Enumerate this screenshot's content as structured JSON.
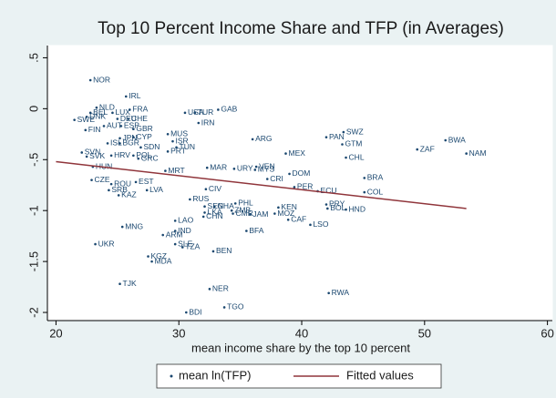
{
  "chart_data": {
    "type": "scatter",
    "title": "Top 10 Percent Income Share and TFP (in Averages)",
    "x_label": "mean income share by the top 10 percent",
    "xlim": [
      19.3,
      60.4
    ],
    "ylim": [
      -2.08,
      0.62
    ],
    "xticks": [
      20,
      30,
      40,
      50,
      60
    ],
    "yticks": [
      {
        "value": 0.5,
        "label": ".5"
      },
      0,
      {
        "value": -0.5,
        "label": "-.5"
      },
      -1,
      -1.5,
      -2
    ],
    "series": [
      {
        "name": "mean ln(TFP)",
        "color": "#1a476f",
        "labels": [
          "NOR",
          "IRL",
          "NLD",
          "BEL",
          "LUX",
          "FRA",
          "SWE",
          "DNK",
          "DEU",
          "CHE",
          "AUT",
          "ESP",
          "GBR",
          "FIN",
          "USA",
          "TUR",
          "GAB",
          "IRN",
          "JPN",
          "CYP",
          "MUS",
          "ISL",
          "BGR",
          "ISR",
          "TUN",
          "SDN",
          "PRT",
          "HRV",
          "POL",
          "GRC",
          "SVN",
          "SVK",
          "HUN",
          "ARG",
          "PAN",
          "SWZ",
          "GTM",
          "BWA",
          "ZAF",
          "NAM",
          "MEX",
          "CHL",
          "MRT",
          "MAR",
          "URY",
          "VEN",
          "MYS",
          "DOM",
          "CRI",
          "BRA",
          "PER",
          "ECU",
          "COL",
          "CZE",
          "ROU",
          "EST",
          "SRB",
          "LVA",
          "KAZ",
          "CIV",
          "RUS",
          "PRY",
          "BOL",
          "HND",
          "PHL",
          "SEN",
          "GHA",
          "ZMB",
          "LKA",
          "CMR",
          "JAM",
          "MOZ",
          "KEN",
          "CHN",
          "CAF",
          "LSO",
          "MNG",
          "LAO",
          "IND",
          "BFA",
          "ARM",
          "UKR",
          "SLE",
          "TZA",
          "BEN",
          "KGZ",
          "MDA",
          "TJK",
          "NER",
          "RWA",
          "TGO",
          "BDI"
        ],
        "x": [
          22.8,
          25.7,
          23.3,
          22.8,
          24.6,
          26.0,
          21.5,
          22.5,
          25.0,
          25.9,
          23.9,
          25.3,
          26.3,
          22.4,
          30.5,
          31.3,
          33.2,
          31.6,
          25.2,
          26.3,
          29.1,
          24.2,
          25.2,
          29.5,
          29.8,
          26.9,
          29.1,
          24.5,
          26.3,
          26.7,
          22.1,
          22.5,
          23.0,
          36.0,
          42.0,
          43.4,
          43.3,
          51.7,
          49.4,
          53.4,
          38.7,
          43.6,
          28.9,
          32.3,
          34.5,
          36.3,
          36.2,
          39.0,
          37.2,
          45.1,
          39.4,
          41.3,
          45.1,
          22.9,
          24.5,
          26.5,
          24.3,
          27.4,
          25.1,
          32.2,
          30.9,
          42.0,
          42.1,
          43.6,
          34.6,
          32.1,
          32.9,
          34.3,
          32.1,
          34.4,
          35.8,
          37.8,
          38.1,
          32.0,
          38.9,
          40.7,
          25.4,
          29.7,
          29.7,
          35.5,
          28.7,
          23.2,
          29.7,
          30.3,
          32.8,
          27.5,
          27.8,
          25.2,
          32.5,
          42.2,
          33.7,
          30.6
        ],
        "values": [
          0.28,
          0.12,
          0.01,
          -0.04,
          -0.04,
          -0.01,
          -0.11,
          -0.08,
          -0.1,
          -0.1,
          -0.17,
          -0.17,
          -0.2,
          -0.21,
          -0.04,
          -0.04,
          -0.01,
          -0.14,
          -0.29,
          -0.28,
          -0.25,
          -0.34,
          -0.34,
          -0.32,
          -0.38,
          -0.38,
          -0.42,
          -0.46,
          -0.46,
          -0.49,
          -0.43,
          -0.47,
          -0.57,
          -0.3,
          -0.28,
          -0.23,
          -0.35,
          -0.31,
          -0.4,
          -0.44,
          -0.44,
          -0.48,
          -0.61,
          -0.58,
          -0.59,
          -0.57,
          -0.6,
          -0.64,
          -0.69,
          -0.68,
          -0.77,
          -0.81,
          -0.82,
          -0.7,
          -0.74,
          -0.72,
          -0.8,
          -0.8,
          -0.85,
          -0.79,
          -0.89,
          -0.94,
          -0.98,
          -0.99,
          -0.93,
          -0.96,
          -0.96,
          -1.0,
          -1.02,
          -1.03,
          -1.04,
          -1.03,
          -0.97,
          -1.06,
          -1.09,
          -1.14,
          -1.16,
          -1.1,
          -1.2,
          -1.2,
          -1.24,
          -1.33,
          -1.33,
          -1.36,
          -1.4,
          -1.45,
          -1.5,
          -1.72,
          -1.77,
          -1.81,
          -1.95,
          -2.0
        ]
      },
      {
        "name": "Fitted values",
        "color": "#90353b",
        "x": [
          20,
          53.4
        ],
        "values": [
          -0.52,
          -0.98
        ]
      }
    ]
  }
}
